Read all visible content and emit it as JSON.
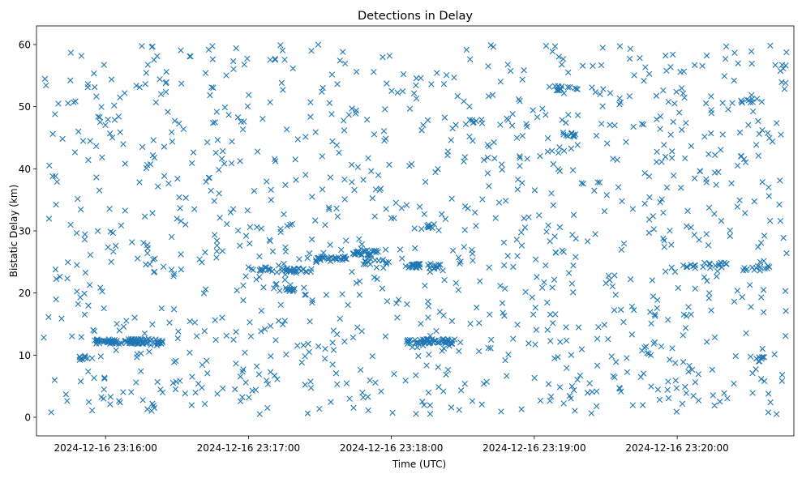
{
  "chart_data": {
    "type": "scatter",
    "title": "Detections in Delay",
    "xlabel": "Time (UTC)",
    "ylabel": "Bistatic Delay (km)",
    "marker": "x",
    "color": "#1f77b4",
    "grid": false,
    "legend": "none",
    "x_axis": {
      "type": "time",
      "range": [
        "2024-12-16 23:15:31",
        "2024-12-16 23:20:49"
      ],
      "ticks": [
        "2024-12-16 23:16:00",
        "2024-12-16 23:17:00",
        "2024-12-16 23:18:00",
        "2024-12-16 23:19:00",
        "2024-12-16 23:20:00"
      ]
    },
    "y_axis": {
      "range": [
        -3,
        63
      ],
      "ticks": [
        0,
        10,
        20,
        30,
        40,
        50,
        60
      ]
    },
    "note_on_points": "About 1,400 detections, most scattered roughly uniformly across the time window between 0 and 60 km; the visible clusters are listed below.",
    "clusters": [
      {
        "x": [
          "2024-12-16 23:15:55",
          "2024-12-16 23:16:16"
        ],
        "y": 12.2,
        "count": 60
      },
      {
        "x": [
          "2024-12-16 23:16:10",
          "2024-12-16 23:16:24"
        ],
        "y": 12.2,
        "count": 40
      },
      {
        "x": [
          "2024-12-16 23:18:06",
          "2024-12-16 23:18:27"
        ],
        "y": 12.2,
        "count": 55
      },
      {
        "x": [
          "2024-12-16 23:15:49",
          "2024-12-16 23:15:55"
        ],
        "y": 9.5,
        "count": 10
      },
      {
        "x": [
          "2024-12-16 23:17:00",
          "2024-12-16 23:17:10"
        ],
        "y": 23.8,
        "count": 14
      },
      {
        "x": [
          "2024-12-16 23:17:13",
          "2024-12-16 23:17:28"
        ],
        "y": 23.6,
        "count": 25
      },
      {
        "x": [
          "2024-12-16 23:17:15",
          "2024-12-16 23:17:20"
        ],
        "y": 20.6,
        "count": 10
      },
      {
        "x": [
          "2024-12-16 23:17:28",
          "2024-12-16 23:17:43"
        ],
        "y": 25.5,
        "count": 30
      },
      {
        "x": [
          "2024-12-16 23:17:43",
          "2024-12-16 23:17:55"
        ],
        "y": 26.5,
        "count": 30
      },
      {
        "x": [
          "2024-12-16 23:17:49",
          "2024-12-16 23:18:00"
        ],
        "y": 25.0,
        "count": 12
      },
      {
        "x": [
          "2024-12-16 23:18:06",
          "2024-12-16 23:18:12"
        ],
        "y": 24.3,
        "count": 22
      },
      {
        "x": [
          "2024-12-16 23:18:15",
          "2024-12-16 23:18:21"
        ],
        "y": 24.3,
        "count": 14
      },
      {
        "x": [
          "2024-12-16 23:18:15",
          "2024-12-16 23:18:18"
        ],
        "y": 30.8,
        "count": 8
      },
      {
        "x": [
          "2024-12-16 23:18:31",
          "2024-12-16 23:18:36"
        ],
        "y": 47.5,
        "count": 6
      },
      {
        "x": [
          "2024-12-16 23:19:12",
          "2024-12-16 23:19:18"
        ],
        "y": 45.5,
        "count": 12
      },
      {
        "x": [
          "2024-12-16 23:19:06",
          "2024-12-16 23:19:20"
        ],
        "y": 53.0,
        "count": 15
      },
      {
        "x": [
          "2024-12-16 23:20:00",
          "2024-12-16 23:20:24"
        ],
        "y": 24.5,
        "count": 20
      },
      {
        "x": [
          "2024-12-16 23:20:27",
          "2024-12-16 23:20:39"
        ],
        "y": 24.0,
        "count": 12
      },
      {
        "x": [
          "2024-12-16 23:20:24",
          "2024-12-16 23:20:39"
        ],
        "y": 51.0,
        "count": 10
      },
      {
        "x": [
          "2024-12-16 23:20:33",
          "2024-12-16 23:20:37"
        ],
        "y": 9.3,
        "count": 8
      }
    ]
  }
}
